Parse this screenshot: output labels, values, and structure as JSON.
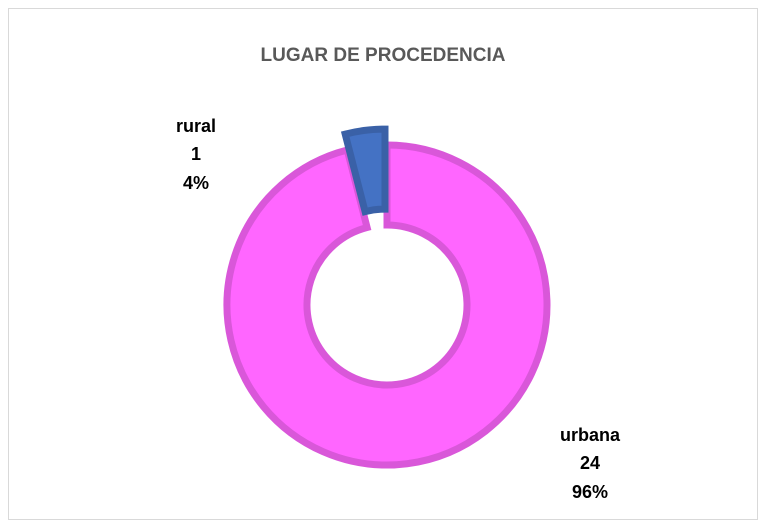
{
  "chart_data": {
    "type": "doughnut",
    "title": "LUGAR DE PROCEDENCIA",
    "categories": [
      "urbana",
      "rural"
    ],
    "values": [
      24,
      1
    ],
    "percent_labels": [
      "96%",
      "4%"
    ],
    "colors": [
      "#ff66ff",
      "#4472c4"
    ],
    "explode": [
      false,
      true
    ]
  }
}
